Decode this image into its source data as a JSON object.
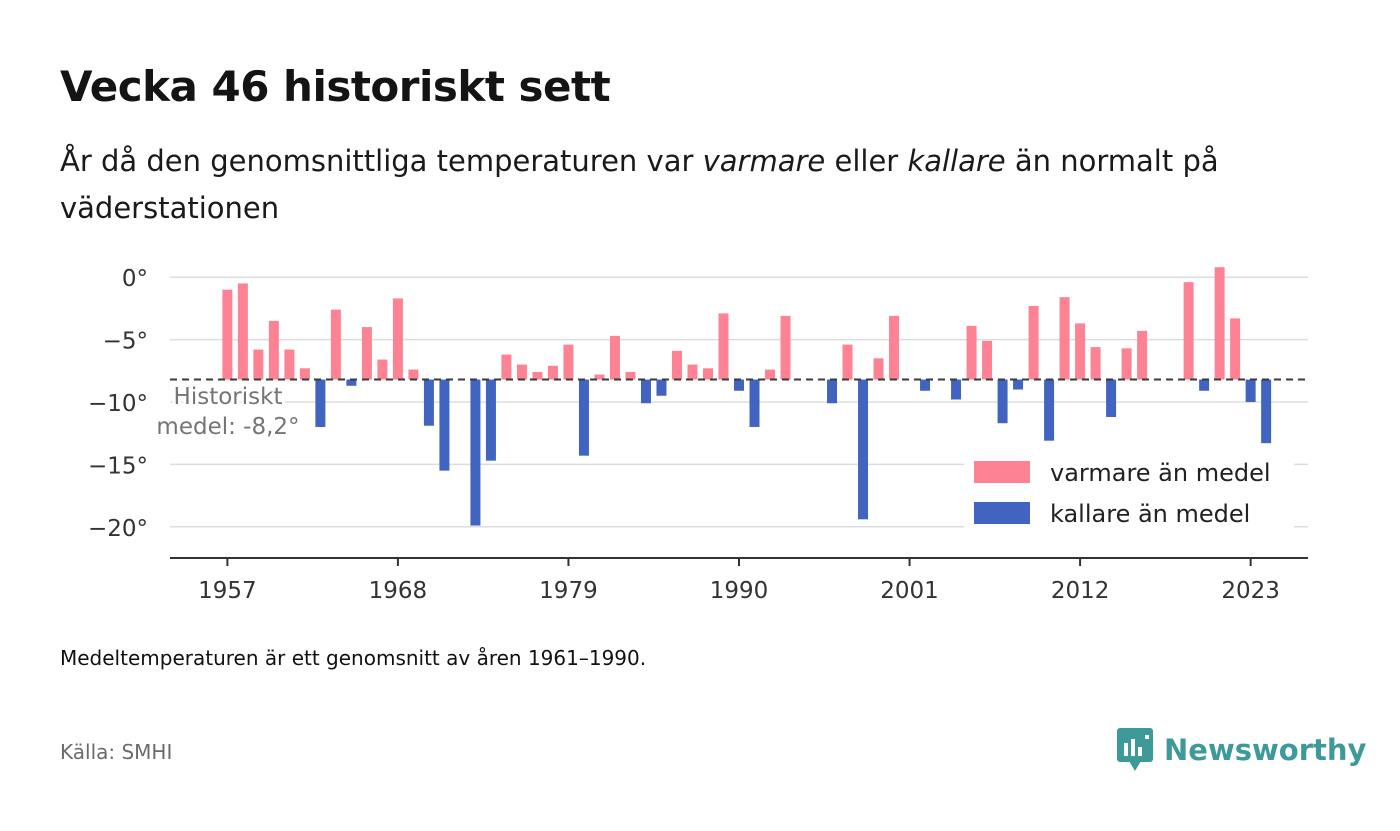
{
  "title": "Vecka 46 historiskt sett",
  "subtitle_parts": [
    "År då den genomsnittliga temperaturen var ",
    "varmare",
    " eller ",
    "kallare",
    " än normalt på väderstationen"
  ],
  "note": "Medeltemperaturen är ett genomsnitt av åren 1961–1990.",
  "source": "Källa: SMHI",
  "brand": {
    "name": "Newsworthy",
    "icon": "newsworthy-logo-icon"
  },
  "colors": {
    "warm": "#fd8294",
    "cold": "#4164c0",
    "axis": "#333333",
    "grid": "#dddddd",
    "mean_line": "#3a3a3a",
    "brand": "#3e9a98"
  },
  "chart_data": {
    "type": "bar",
    "baseline": -8.2,
    "baseline_label": [
      "Historiskt",
      "medel: -8,2°"
    ],
    "ylim": [
      -22.5,
      2.5
    ],
    "yticks": [
      0,
      -5,
      -10,
      -15,
      -20
    ],
    "ytick_labels": [
      "0°",
      "−5°",
      "−10°",
      "−15°",
      "−20°"
    ],
    "xticks": [
      1957,
      1968,
      1979,
      1990,
      2001,
      2012,
      2023
    ],
    "xlim": [
      1953.3,
      2026.7
    ],
    "grid": true,
    "legend_position": "bottom-right",
    "series": [
      {
        "name": "varmare än medel",
        "color": "#fd8294",
        "points": [
          [
            1957,
            -1.0
          ],
          [
            1958,
            -0.5
          ],
          [
            1959,
            -5.8
          ],
          [
            1960,
            -3.5
          ],
          [
            1961,
            -5.8
          ],
          [
            1962,
            -7.3
          ],
          [
            1964,
            -2.6
          ],
          [
            1966,
            -4.0
          ],
          [
            1967,
            -6.6
          ],
          [
            1968,
            -1.7
          ],
          [
            1969,
            -7.4
          ],
          [
            1975,
            -6.2
          ],
          [
            1976,
            -7.0
          ],
          [
            1977,
            -7.6
          ],
          [
            1978,
            -7.1
          ],
          [
            1979,
            -5.4
          ],
          [
            1981,
            -7.8
          ],
          [
            1982,
            -4.7
          ],
          [
            1983,
            -7.6
          ],
          [
            1986,
            -5.9
          ],
          [
            1987,
            -7.0
          ],
          [
            1988,
            -7.3
          ],
          [
            1989,
            -2.9
          ],
          [
            1992,
            -7.4
          ],
          [
            1993,
            -3.1
          ],
          [
            1997,
            -5.4
          ],
          [
            1999,
            -6.5
          ],
          [
            2000,
            -3.1
          ],
          [
            2005,
            -3.9
          ],
          [
            2006,
            -5.1
          ],
          [
            2009,
            -2.3
          ],
          [
            2011,
            -1.6
          ],
          [
            2012,
            -3.7
          ],
          [
            2013,
            -5.6
          ],
          [
            2015,
            -5.7
          ],
          [
            2016,
            -4.3
          ],
          [
            2019,
            -0.4
          ],
          [
            2021,
            0.8
          ],
          [
            2022,
            -3.3
          ]
        ]
      },
      {
        "name": "kallare än medel",
        "color": "#4164c0",
        "points": [
          [
            1963,
            -12.0
          ],
          [
            1965,
            -8.7
          ],
          [
            1970,
            -11.9
          ],
          [
            1971,
            -15.5
          ],
          [
            1973,
            -19.9
          ],
          [
            1974,
            -14.7
          ],
          [
            1980,
            -14.3
          ],
          [
            1984,
            -10.1
          ],
          [
            1985,
            -9.5
          ],
          [
            1990,
            -9.1
          ],
          [
            1991,
            -12.0
          ],
          [
            1996,
            -10.1
          ],
          [
            1998,
            -19.4
          ],
          [
            2002,
            -9.1
          ],
          [
            2004,
            -9.8
          ],
          [
            2007,
            -11.7
          ],
          [
            2008,
            -9.0
          ],
          [
            2010,
            -13.1
          ],
          [
            2014,
            -11.2
          ],
          [
            2020,
            -9.1
          ],
          [
            2023,
            -10.0
          ],
          [
            2024,
            -13.3
          ]
        ]
      }
    ]
  }
}
